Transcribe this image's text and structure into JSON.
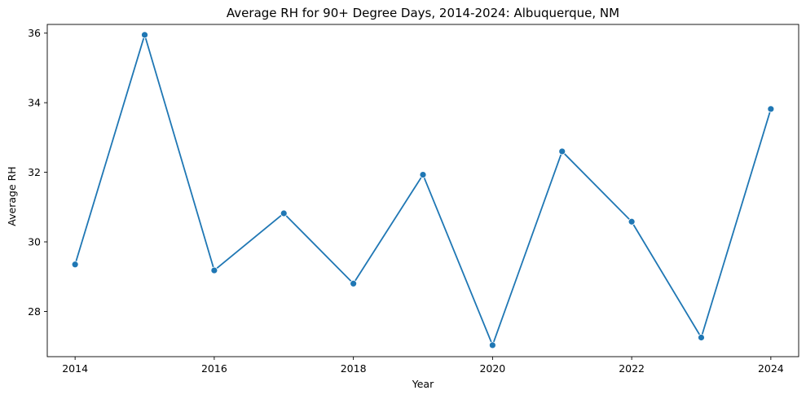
{
  "chart_data": {
    "type": "line",
    "title": "Average RH for 90+ Degree Days, 2014-2024: Albuquerque, NM",
    "xlabel": "Year",
    "ylabel": "Average RH",
    "xlim": [
      2013.6,
      2024.4
    ],
    "ylim": [
      26.7,
      36.25
    ],
    "x_ticks": [
      2014,
      2016,
      2018,
      2020,
      2022,
      2024
    ],
    "y_ticks": [
      28,
      30,
      32,
      34,
      36
    ],
    "grid": false,
    "legend": "none",
    "line_color": "#1f77b4",
    "series": [
      {
        "x": [
          2014,
          2015,
          2016,
          2017,
          2018,
          2019,
          2020,
          2021,
          2022,
          2023,
          2024
        ],
        "values": [
          29.35,
          35.95,
          29.18,
          30.82,
          28.8,
          31.93,
          27.03,
          32.6,
          30.58,
          27.25,
          33.82
        ]
      }
    ]
  }
}
